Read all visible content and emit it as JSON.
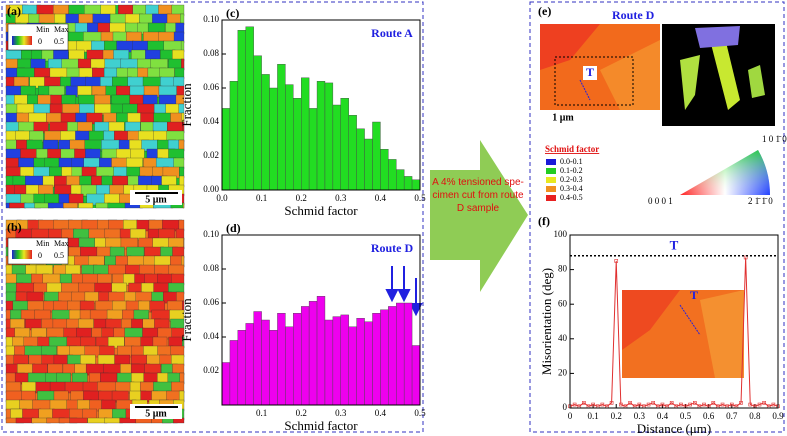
{
  "panels": {
    "a": {
      "label": "(a)",
      "scale_bar": "5 μm",
      "colorbar": {
        "min_label": "Min",
        "max_label": "Max",
        "min": "0",
        "max": "0.5"
      }
    },
    "b": {
      "label": "(b)",
      "scale_bar": "5 μm",
      "colorbar": {
        "min_label": "Min",
        "max_label": "Max",
        "min": "0",
        "max": "0.5"
      }
    },
    "e": {
      "label": "(e)",
      "title": "Route D",
      "marker": "T",
      "scale_bar": "1 μm",
      "legend_title": "Schmid factor",
      "legend": [
        {
          "label": "0.0-0.1",
          "color": "#1a1ad8"
        },
        {
          "label": "0.1-0.2",
          "color": "#22cc22"
        },
        {
          "label": "0.2-0.3",
          "color": "#e8e820"
        },
        {
          "label": "0.3-0.4",
          "color": "#f09020"
        },
        {
          "label": "0.4-0.5",
          "color": "#e82020"
        }
      ],
      "ipf": {
        "top": "1 0 1̄ 0",
        "left": "0 0 0 1",
        "right": "2 1̄ 1̄ 0"
      }
    }
  },
  "arrow_text": "A 4% tensioned spe-cimen cut from route D sample",
  "chart_data": [
    {
      "type": "histogram",
      "panel_label": "(c)",
      "annotation": "Route A",
      "xlabel": "Schmid factor",
      "ylabel": "Fraction",
      "color": "#22dd22",
      "bins": [
        0,
        0.02,
        0.04,
        0.06,
        0.08,
        0.1,
        0.12,
        0.14,
        0.16,
        0.18,
        0.2,
        0.22,
        0.24,
        0.26,
        0.28,
        0.3,
        0.32,
        0.34,
        0.36,
        0.38,
        0.4,
        0.42,
        0.44,
        0.46,
        0.48,
        0.5
      ],
      "values": [
        0.048,
        0.064,
        0.094,
        0.096,
        0.079,
        0.068,
        0.06,
        0.074,
        0.062,
        0.054,
        0.066,
        0.048,
        0.064,
        0.063,
        0.05,
        0.054,
        0.044,
        0.036,
        0.03,
        0.04,
        0.024,
        0.018,
        0.012,
        0.008,
        0.006
      ],
      "xlim": [
        0,
        0.5
      ],
      "xticks": [
        {
          "value": 0,
          "label": "0.0"
        },
        0.1,
        0.2,
        0.3,
        0.4,
        0.5
      ],
      "ylim": [
        0,
        0.1
      ],
      "yticks": [
        {
          "value": 0,
          "label": "0.00"
        },
        0.02,
        0.04,
        0.06,
        0.08,
        {
          "value": 0.1,
          "label": "0.10"
        }
      ]
    },
    {
      "type": "histogram",
      "panel_label": "(d)",
      "annotation": "Route D",
      "xlabel": "Schmid factor",
      "ylabel": "Fraction",
      "color": "#ee00ee",
      "bins": [
        0,
        0.02,
        0.04,
        0.06,
        0.08,
        0.1,
        0.12,
        0.14,
        0.16,
        0.18,
        0.2,
        0.22,
        0.24,
        0.26,
        0.28,
        0.3,
        0.32,
        0.34,
        0.36,
        0.38,
        0.4,
        0.42,
        0.44,
        0.46,
        0.48,
        0.5
      ],
      "values": [
        0.025,
        0.038,
        0.044,
        0.048,
        0.055,
        0.05,
        0.044,
        0.054,
        0.046,
        0.054,
        0.058,
        0.061,
        0.064,
        0.05,
        0.052,
        0.053,
        0.046,
        0.051,
        0.049,
        0.054,
        0.056,
        0.058,
        0.06,
        0.06,
        0.035
      ],
      "xlim": [
        0,
        0.5
      ],
      "xticks": [
        0.1,
        0.2,
        0.3,
        0.4,
        0.5
      ],
      "ylim": [
        0,
        0.1
      ],
      "yticks": [
        {
          "value": 0.02,
          "label": "0.02"
        },
        0.04,
        0.06,
        0.08,
        {
          "value": 0.1,
          "label": "0.10"
        }
      ]
    },
    {
      "type": "line",
      "panel_label": "(f)",
      "xlabel": "Distance (μm)",
      "ylabel": "Misorientation (deg)",
      "inset_marker": "T",
      "reference_line": {
        "value": 88,
        "label": "T"
      },
      "x": [
        0,
        0.02,
        0.04,
        0.06,
        0.08,
        0.1,
        0.12,
        0.14,
        0.16,
        0.18,
        0.2,
        0.22,
        0.24,
        0.26,
        0.28,
        0.3,
        0.32,
        0.34,
        0.36,
        0.38,
        0.4,
        0.42,
        0.44,
        0.46,
        0.48,
        0.5,
        0.52,
        0.54,
        0.56,
        0.58,
        0.6,
        0.62,
        0.64,
        0.66,
        0.68,
        0.7,
        0.72,
        0.74,
        0.76,
        0.78,
        0.8,
        0.82,
        0.84,
        0.86,
        0.88,
        0.9
      ],
      "series": [
        {
          "name": "Misorientation",
          "color": "#e03030",
          "values": [
            1,
            2,
            1,
            3,
            1,
            2,
            1,
            2,
            1,
            3,
            85,
            2,
            1,
            3,
            1,
            2,
            1,
            2,
            3,
            1,
            2,
            1,
            3,
            1,
            2,
            1,
            2,
            3,
            1,
            2,
            1,
            3,
            1,
            2,
            1,
            2,
            1,
            3,
            87,
            2,
            1,
            2,
            3,
            1,
            2,
            1
          ]
        }
      ],
      "xlim": [
        0,
        0.9
      ],
      "xticks": [
        0,
        0.1,
        0.2,
        0.3,
        0.4,
        0.5,
        0.6,
        0.7,
        0.8,
        0.9
      ],
      "ylim": [
        0,
        100
      ],
      "yticks": [
        0,
        20,
        40,
        60,
        80,
        100
      ]
    }
  ]
}
